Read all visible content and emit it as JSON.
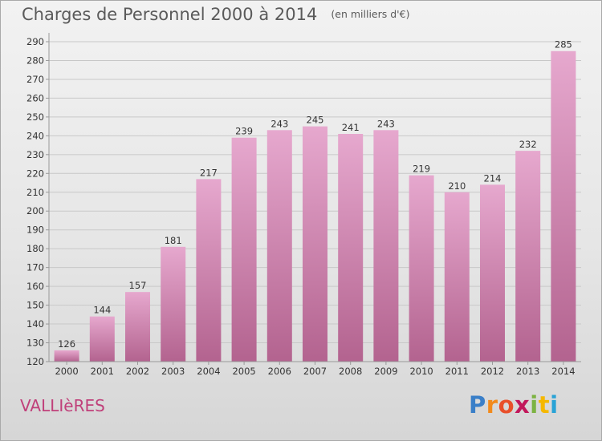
{
  "title": "Charges de Personnel 2000 à 2014",
  "subtitle": "(en milliers d'€)",
  "commune": "VALLIèRES",
  "logo": {
    "text": "Proxiti",
    "letters": [
      "P",
      "r",
      "o",
      "x",
      "i",
      "t",
      "i"
    ],
    "colors": [
      "#3a7fc8",
      "#f28a1c",
      "#e94f2a",
      "#c2185b",
      "#7cb342",
      "#f5b800",
      "#29a3d6"
    ]
  },
  "colors": {
    "bar_top": "#e6a8ce",
    "bar_bottom": "#b3638f",
    "grid": "#c8c8c8",
    "text": "#333333"
  },
  "chart_data": {
    "type": "bar",
    "categories": [
      "2000",
      "2001",
      "2002",
      "2003",
      "2004",
      "2005",
      "2006",
      "2007",
      "2008",
      "2009",
      "2010",
      "2011",
      "2012",
      "2013",
      "2014"
    ],
    "values": [
      126,
      144,
      157,
      181,
      217,
      239,
      243,
      245,
      241,
      243,
      219,
      210,
      214,
      232,
      285
    ],
    "ylim": [
      120,
      290
    ],
    "yticks": [
      120,
      130,
      140,
      150,
      160,
      170,
      180,
      190,
      200,
      210,
      220,
      230,
      240,
      250,
      260,
      270,
      280,
      290
    ],
    "grid": true
  }
}
